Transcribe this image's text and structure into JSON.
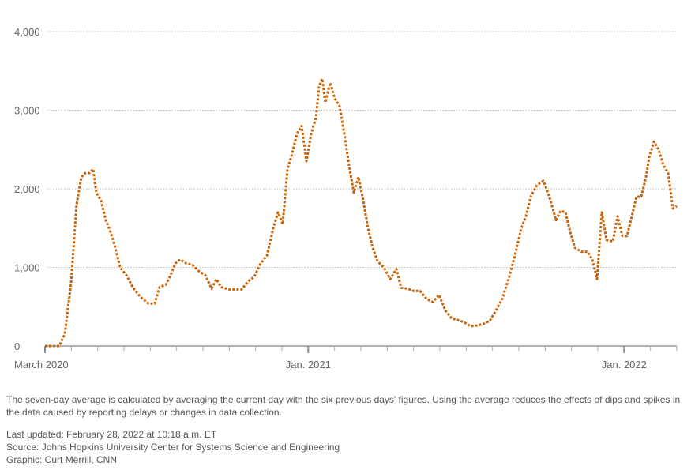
{
  "chart_data": {
    "type": "line",
    "color": "#c8650a",
    "x": [
      0,
      0.54,
      0.75,
      0.99,
      1.2,
      1.38,
      1.53,
      1.68,
      1.83,
      1.95,
      2.13,
      2.31,
      2.49,
      2.67,
      2.85,
      3.09,
      3.33,
      3.63,
      3.93,
      4.17,
      4.35,
      4.59,
      4.77,
      4.95,
      5.13,
      5.37,
      5.61,
      5.85,
      6.09,
      6.33,
      6.51,
      6.69,
      6.99,
      7.29,
      7.47,
      7.71,
      7.95,
      8.19,
      8.43,
      8.67,
      8.85,
      9.03,
      9.21,
      9.39,
      9.57,
      9.75,
      9.93,
      10.11,
      10.29,
      10.41,
      10.53,
      10.65,
      10.83,
      11.01,
      11.19,
      11.37,
      11.55,
      11.73,
      11.91,
      12.09,
      12.27,
      12.45,
      12.63,
      12.87,
      13.11,
      13.35,
      13.53,
      13.77,
      14.01,
      14.25,
      14.49,
      14.73,
      14.97,
      15.21,
      15.45,
      15.69,
      15.93,
      16.17,
      16.41,
      16.65,
      16.89,
      17.13,
      17.37,
      17.61,
      17.85,
      18.09,
      18.27,
      18.45,
      18.69,
      18.93,
      19.11,
      19.29,
      19.41,
      19.59,
      19.77,
      19.95,
      20.13,
      20.37,
      20.61,
      20.79,
      20.97,
      21.15,
      21.33,
      21.57,
      21.75,
      21.93,
      22.11,
      22.29,
      22.47,
      22.65,
      22.83,
      22.95,
      23.13,
      23.31,
      23.49,
      23.67,
      23.85,
      24
    ],
    "values": [
      0,
      0,
      150,
      800,
      1800,
      2150,
      2200,
      2200,
      2250,
      1950,
      1850,
      1600,
      1450,
      1250,
      1000,
      900,
      750,
      620,
      540,
      540,
      750,
      780,
      900,
      1050,
      1100,
      1050,
      1030,
      950,
      900,
      730,
      850,
      750,
      720,
      720,
      720,
      820,
      880,
      1050,
      1150,
      1500,
      1700,
      1550,
      2250,
      2450,
      2700,
      2800,
      2350,
      2700,
      2900,
      3300,
      3400,
      3100,
      3350,
      3150,
      3050,
      2700,
      2300,
      1950,
      2150,
      1850,
      1500,
      1250,
      1080,
      1000,
      850,
      980,
      740,
      730,
      700,
      700,
      600,
      560,
      650,
      450,
      350,
      330,
      300,
      250,
      260,
      280,
      320,
      450,
      600,
      850,
      1150,
      1500,
      1650,
      1900,
      2050,
      2100,
      1950,
      1750,
      1600,
      1720,
      1700,
      1450,
      1250,
      1200,
      1200,
      1100,
      850,
      1700,
      1350,
      1330,
      1650,
      1400,
      1400,
      1650,
      1900,
      1900,
      2150,
      2400,
      2600,
      2500,
      2300,
      2200,
      1750,
      1780
    ],
    "xlim": [
      0,
      24
    ],
    "xticks": [
      {
        "value": 0,
        "label": "March 2020"
      },
      {
        "value": 10,
        "label": "Jan. 2021"
      },
      {
        "value": 22,
        "label": "Jan. 2022"
      }
    ],
    "xminorticks": [
      0,
      1,
      2,
      3,
      4,
      5,
      6,
      7,
      8,
      9,
      10,
      11,
      12,
      13,
      14,
      15,
      16,
      17,
      18,
      19,
      20,
      21,
      22,
      23,
      24
    ],
    "ylim": [
      0,
      4000
    ],
    "yticks": [
      0,
      {
        "value": 1000,
        "label": "1,000"
      },
      {
        "value": 2000,
        "label": "2,000"
      },
      {
        "value": 3000,
        "label": "3,000"
      },
      {
        "value": 4000,
        "label": "4,000"
      }
    ],
    "grid": true
  },
  "note": "The seven-day average is calculated by averaging the current day with the six previous days' figures. Using the average reduces the effects of dips and spikes in the data caused by reporting delays or changes in data collection.",
  "last_updated": "Last updated: February 28, 2022 at 10:18 a.m. ET",
  "source": "Source: Johns Hopkins University Center for Systems Science and Engineering",
  "credit": "Graphic: Curt Merrill, CNN"
}
